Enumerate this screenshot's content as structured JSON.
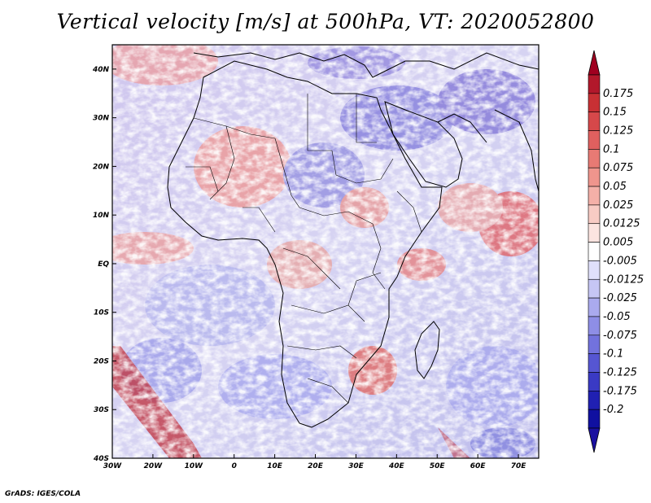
{
  "title": "Vertical velocity [m/s] at 500hPa, VT: 2020052800",
  "footer": "GrADS: IGES/COLA",
  "map": {
    "variable": "Vertical velocity",
    "units": "m/s",
    "level": "500hPa",
    "valid_time": "2020052800",
    "lon_range": [
      -30,
      75
    ],
    "lat_range": [
      -40,
      45
    ],
    "x_ticks": [
      "30W",
      "20W",
      "10W",
      "0",
      "10E",
      "20E",
      "30E",
      "40E",
      "50E",
      "60E",
      "70E"
    ],
    "x_tick_values": [
      -30,
      -20,
      -10,
      0,
      10,
      20,
      30,
      40,
      50,
      60,
      70
    ],
    "y_ticks": [
      "40N",
      "30N",
      "20N",
      "10N",
      "EQ",
      "10S",
      "20S",
      "30S",
      "40S"
    ],
    "y_tick_values": [
      40,
      30,
      20,
      10,
      0,
      -10,
      -20,
      -30,
      -40
    ]
  },
  "colorbar": {
    "labels": [
      "0.175",
      "0.15",
      "0.125",
      "0.1",
      "0.075",
      "0.05",
      "0.025",
      "0.0125",
      "0.005",
      "-0.005",
      "-0.0125",
      "-0.025",
      "-0.05",
      "-0.075",
      "-0.1",
      "-0.125",
      "-0.175",
      "-0.2"
    ],
    "colors": [
      "#b2182b",
      "#c83034",
      "#d6484a",
      "#e0605f",
      "#e87a74",
      "#ef958d",
      "#f4b0a8",
      "#f8cbc4",
      "#fce4e0",
      "#ffffff",
      "#e0e0fb",
      "#c6c6f5",
      "#aaaaee",
      "#8e8ee6",
      "#7272dd",
      "#5656d2",
      "#3a3ac4",
      "#2020b2",
      "#1010a0"
    ],
    "top_color": "#a00020",
    "bottom_color": "#1a10a0"
  }
}
